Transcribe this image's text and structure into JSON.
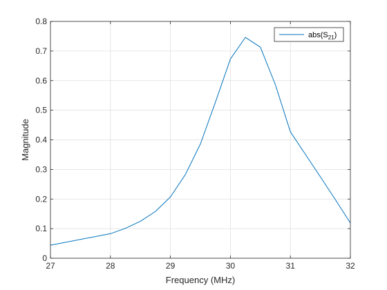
{
  "chart_data": {
    "type": "line",
    "title": "",
    "xlabel": "Frequency (MHz)",
    "ylabel": "Magnitude",
    "xlim": [
      27,
      32
    ],
    "ylim": [
      0,
      0.8
    ],
    "xticks": [
      27,
      28,
      29,
      30,
      31,
      32
    ],
    "yticks": [
      0,
      0.1,
      0.2,
      0.3,
      0.4,
      0.5,
      0.6,
      0.7,
      0.8
    ],
    "xtick_labels": [
      "27",
      "28",
      "29",
      "30",
      "31",
      "32"
    ],
    "ytick_labels": [
      "0",
      "0.1",
      "0.2",
      "0.3",
      "0.4",
      "0.5",
      "0.6",
      "0.7",
      "0.8"
    ],
    "grid": true,
    "legend_position": "top-right",
    "series": [
      {
        "name": "abs(S21)",
        "legend_base": "abs(S",
        "legend_sub": "21",
        "legend_close": ")",
        "color": "#0072BD",
        "x": [
          27,
          28,
          28.25,
          28.5,
          28.75,
          29,
          29.25,
          29.5,
          29.75,
          30,
          30.25,
          30.5,
          30.75,
          31,
          31.25,
          31.5,
          31.75,
          32
        ],
        "y": [
          0.044,
          0.083,
          0.101,
          0.125,
          0.158,
          0.207,
          0.283,
          0.386,
          0.527,
          0.673,
          0.746,
          0.713,
          0.586,
          0.427,
          0.351,
          0.275,
          0.198,
          0.119
        ]
      }
    ]
  }
}
